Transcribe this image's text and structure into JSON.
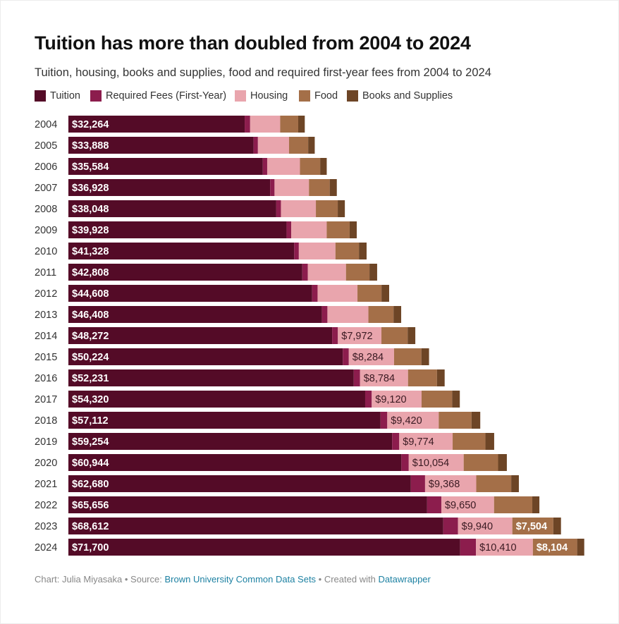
{
  "title": "Tuition has more than doubled from 2004 to 2024",
  "subtitle": "Tuition, housing, books and supplies, food and required first-year fees from 2004 to 2024",
  "footer": {
    "chart_label": "Chart: Julia Miyasaka",
    "sep1": " • Source: ",
    "source": "Brown University Common Data Sets",
    "sep2": " • Created with ",
    "tool": "Datawrapper"
  },
  "colors": {
    "Tuition": "#540b27",
    "Required Fees (First-Year)": "#8c1d4d",
    "Housing": "#e9a5ad",
    "Food": "#a46f48",
    "Books and Supplies": "#6d4526"
  },
  "chart_data": {
    "type": "bar",
    "orientation": "horizontal",
    "stacked": true,
    "categories": [
      "2004",
      "2005",
      "2006",
      "2007",
      "2008",
      "2009",
      "2010",
      "2011",
      "2012",
      "2013",
      "2014",
      "2015",
      "2016",
      "2017",
      "2018",
      "2019",
      "2020",
      "2021",
      "2022",
      "2023",
      "2024"
    ],
    "series": [
      {
        "name": "Tuition",
        "values": [
          32264,
          33888,
          35584,
          36928,
          38048,
          39928,
          41328,
          42808,
          44608,
          46408,
          48272,
          50224,
          52231,
          54320,
          57112,
          59254,
          60944,
          62680,
          65656,
          68612,
          71700
        ],
        "labels": [
          "$32,264",
          "$33,888",
          "$35,584",
          "$36,928",
          "$38,048",
          "$39,928",
          "$41,328",
          "$42,808",
          "$44,608",
          "$46,408",
          "$48,272",
          "$50,224",
          "$52,231",
          "$54,320",
          "$57,112",
          "$59,254",
          "$60,944",
          "$62,680",
          "$65,656",
          "$68,612",
          "$71,700"
        ]
      },
      {
        "name": "Required Fees (First-Year)",
        "values": [
          1000,
          800,
          800,
          800,
          850,
          850,
          850,
          1000,
          1000,
          1000,
          1050,
          1100,
          1150,
          1200,
          1250,
          1300,
          1350,
          2600,
          2600,
          2700,
          2900
        ],
        "labels": [
          "",
          "",
          "",
          "",
          "",
          "",
          "",
          "",
          "",
          "",
          "",
          "",
          "",
          "",
          "",
          "",
          "",
          "",
          "",
          "",
          ""
        ]
      },
      {
        "name": "Housing",
        "values": [
          5500,
          5700,
          6000,
          6300,
          6400,
          6500,
          6700,
          7000,
          7300,
          7500,
          7972,
          8284,
          8784,
          9120,
          9420,
          9774,
          10054,
          9368,
          9650,
          9940,
          10410
        ],
        "labels": [
          "",
          "",
          "",
          "",
          "",
          "",
          "",
          "",
          "",
          "",
          "$7,972",
          "$8,284",
          "$8,784",
          "$9,120",
          "$9,420",
          "$9,774",
          "$10,054",
          "$9,368",
          "$9,650",
          "$9,940",
          "$10,410"
        ]
      },
      {
        "name": "Food",
        "values": [
          3300,
          3500,
          3700,
          3800,
          4000,
          4200,
          4300,
          4300,
          4400,
          4600,
          4800,
          5000,
          5300,
          5600,
          6000,
          6000,
          6300,
          6400,
          7000,
          7504,
          8104
        ],
        "labels": [
          "",
          "",
          "",
          "",
          "",
          "",
          "",
          "",
          "",
          "",
          "",
          "",
          "",
          "",
          "",
          "",
          "",
          "",
          "",
          "$7,504",
          "$8,104"
        ]
      },
      {
        "name": "Books and Supplies",
        "values": [
          1200,
          1200,
          1200,
          1300,
          1300,
          1300,
          1400,
          1400,
          1400,
          1400,
          1400,
          1400,
          1400,
          1400,
          1600,
          1600,
          1600,
          1400,
          1300,
          1400,
          1300
        ],
        "labels": [
          "",
          "",
          "",
          "",
          "",
          "",
          "",
          "",
          "",
          "",
          "",
          "",
          "",
          "",
          "",
          "",
          "",
          "",
          "",
          "",
          ""
        ]
      }
    ],
    "xlim": [
      0,
      95000
    ],
    "legend": "top-left",
    "grid": false
  }
}
